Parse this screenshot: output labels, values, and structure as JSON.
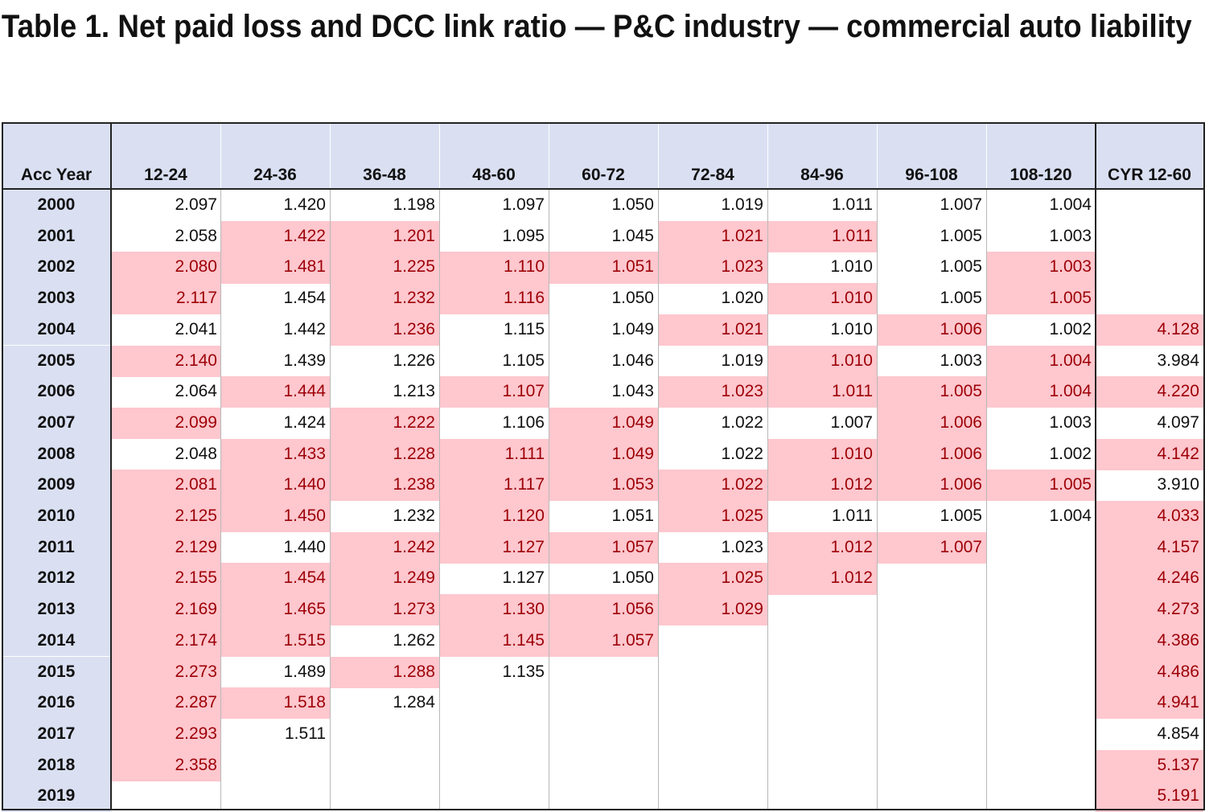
{
  "title": "Table 1. Net paid loss and DCC link ratio — P&C industry — commercial auto liability",
  "colors": {
    "header_bg": "#dae0f2",
    "highlight_bg": "#ffc7ce",
    "highlight_text": "#9c0006"
  },
  "chart_data": {
    "type": "table",
    "columns": [
      "Acc Year",
      "12-24",
      "24-36",
      "36-48",
      "48-60",
      "60-72",
      "72-84",
      "84-96",
      "96-108",
      "108-120",
      "CYR 12-60"
    ],
    "rows": [
      {
        "year": "2000",
        "values": [
          "2.097",
          "1.420",
          "1.198",
          "1.097",
          "1.050",
          "1.019",
          "1.011",
          "1.007",
          "1.004",
          ""
        ],
        "highlight": [
          0,
          0,
          0,
          0,
          0,
          0,
          0,
          0,
          0,
          0
        ]
      },
      {
        "year": "2001",
        "values": [
          "2.058",
          "1.422",
          "1.201",
          "1.095",
          "1.045",
          "1.021",
          "1.011",
          "1.005",
          "1.003",
          ""
        ],
        "highlight": [
          0,
          1,
          1,
          0,
          0,
          1,
          1,
          0,
          0,
          0
        ]
      },
      {
        "year": "2002",
        "values": [
          "2.080",
          "1.481",
          "1.225",
          "1.110",
          "1.051",
          "1.023",
          "1.010",
          "1.005",
          "1.003",
          ""
        ],
        "highlight": [
          1,
          1,
          1,
          1,
          1,
          1,
          0,
          0,
          1,
          0
        ]
      },
      {
        "year": "2003",
        "values": [
          "2.117",
          "1.454",
          "1.232",
          "1.116",
          "1.050",
          "1.020",
          "1.010",
          "1.005",
          "1.005",
          ""
        ],
        "highlight": [
          1,
          0,
          1,
          1,
          0,
          0,
          1,
          0,
          1,
          0
        ]
      },
      {
        "year": "2004",
        "values": [
          "2.041",
          "1.442",
          "1.236",
          "1.115",
          "1.049",
          "1.021",
          "1.010",
          "1.006",
          "1.002",
          "4.128"
        ],
        "highlight": [
          0,
          0,
          1,
          0,
          0,
          1,
          0,
          1,
          0,
          1
        ]
      },
      {
        "year": "2005",
        "values": [
          "2.140",
          "1.439",
          "1.226",
          "1.105",
          "1.046",
          "1.019",
          "1.010",
          "1.003",
          "1.004",
          "3.984"
        ],
        "highlight": [
          1,
          0,
          0,
          0,
          0,
          0,
          1,
          0,
          1,
          0
        ]
      },
      {
        "year": "2006",
        "values": [
          "2.064",
          "1.444",
          "1.213",
          "1.107",
          "1.043",
          "1.023",
          "1.011",
          "1.005",
          "1.004",
          "4.220"
        ],
        "highlight": [
          0,
          1,
          0,
          1,
          0,
          1,
          1,
          1,
          1,
          1
        ]
      },
      {
        "year": "2007",
        "values": [
          "2.099",
          "1.424",
          "1.222",
          "1.106",
          "1.049",
          "1.022",
          "1.007",
          "1.006",
          "1.003",
          "4.097"
        ],
        "highlight": [
          1,
          0,
          1,
          0,
          1,
          0,
          0,
          1,
          0,
          0
        ]
      },
      {
        "year": "2008",
        "values": [
          "2.048",
          "1.433",
          "1.228",
          "1.111",
          "1.049",
          "1.022",
          "1.010",
          "1.006",
          "1.002",
          "4.142"
        ],
        "highlight": [
          0,
          1,
          1,
          1,
          1,
          0,
          1,
          1,
          0,
          1
        ]
      },
      {
        "year": "2009",
        "values": [
          "2.081",
          "1.440",
          "1.238",
          "1.117",
          "1.053",
          "1.022",
          "1.012",
          "1.006",
          "1.005",
          "3.910"
        ],
        "highlight": [
          1,
          1,
          1,
          1,
          1,
          1,
          1,
          1,
          1,
          0
        ]
      },
      {
        "year": "2010",
        "values": [
          "2.125",
          "1.450",
          "1.232",
          "1.120",
          "1.051",
          "1.025",
          "1.011",
          "1.005",
          "1.004",
          "4.033"
        ],
        "highlight": [
          1,
          1,
          0,
          1,
          0,
          1,
          0,
          0,
          0,
          1
        ]
      },
      {
        "year": "2011",
        "values": [
          "2.129",
          "1.440",
          "1.242",
          "1.127",
          "1.057",
          "1.023",
          "1.012",
          "1.007",
          "",
          "4.157"
        ],
        "highlight": [
          1,
          0,
          1,
          1,
          1,
          0,
          1,
          1,
          0,
          1
        ]
      },
      {
        "year": "2012",
        "values": [
          "2.155",
          "1.454",
          "1.249",
          "1.127",
          "1.050",
          "1.025",
          "1.012",
          "",
          "",
          "4.246"
        ],
        "highlight": [
          1,
          1,
          1,
          0,
          0,
          1,
          1,
          0,
          0,
          1
        ]
      },
      {
        "year": "2013",
        "values": [
          "2.169",
          "1.465",
          "1.273",
          "1.130",
          "1.056",
          "1.029",
          "",
          "",
          "",
          "4.273"
        ],
        "highlight": [
          1,
          1,
          1,
          1,
          1,
          1,
          0,
          0,
          0,
          1
        ]
      },
      {
        "year": "2014",
        "values": [
          "2.174",
          "1.515",
          "1.262",
          "1.145",
          "1.057",
          "",
          "",
          "",
          "",
          "4.386"
        ],
        "highlight": [
          1,
          1,
          0,
          1,
          1,
          0,
          0,
          0,
          0,
          1
        ]
      },
      {
        "year": "2015",
        "values": [
          "2.273",
          "1.489",
          "1.288",
          "1.135",
          "",
          "",
          "",
          "",
          "",
          "4.486"
        ],
        "highlight": [
          1,
          0,
          1,
          0,
          0,
          0,
          0,
          0,
          0,
          1
        ]
      },
      {
        "year": "2016",
        "values": [
          "2.287",
          "1.518",
          "1.284",
          "",
          "",
          "",
          "",
          "",
          "",
          "4.941"
        ],
        "highlight": [
          1,
          1,
          0,
          0,
          0,
          0,
          0,
          0,
          0,
          1
        ]
      },
      {
        "year": "2017",
        "values": [
          "2.293",
          "1.511",
          "",
          "",
          "",
          "",
          "",
          "",
          "",
          "4.854"
        ],
        "highlight": [
          1,
          0,
          0,
          0,
          0,
          0,
          0,
          0,
          0,
          0
        ]
      },
      {
        "year": "2018",
        "values": [
          "2.358",
          "",
          "",
          "",
          "",
          "",
          "",
          "",
          "",
          "5.137"
        ],
        "highlight": [
          1,
          0,
          0,
          0,
          0,
          0,
          0,
          0,
          0,
          1
        ]
      },
      {
        "year": "2019",
        "values": [
          "",
          "",
          "",
          "",
          "",
          "",
          "",
          "",
          "",
          "5.191"
        ],
        "highlight": [
          0,
          0,
          0,
          0,
          0,
          0,
          0,
          0,
          0,
          1
        ]
      }
    ]
  }
}
